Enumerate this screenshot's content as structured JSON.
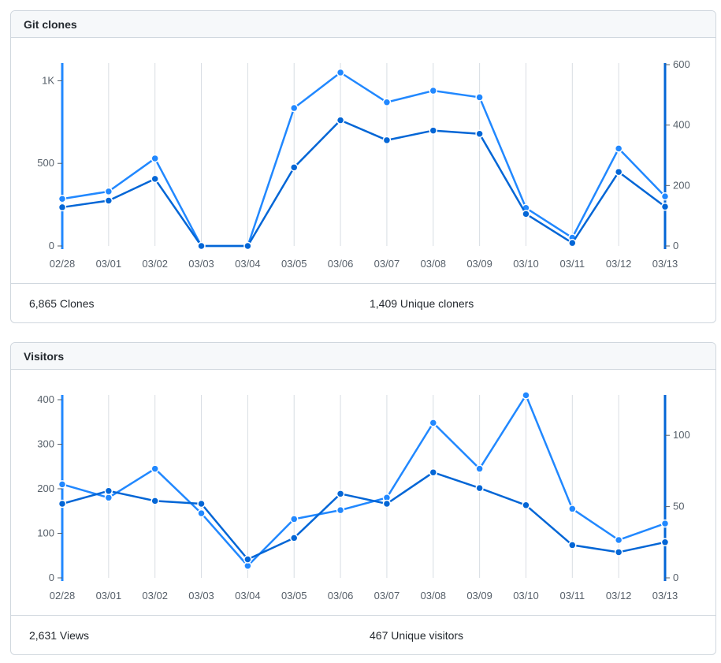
{
  "clones": {
    "title": "Git clones",
    "total_label": "6,865 Clones",
    "unique_label": "1,409 Unique cloners"
  },
  "visitors": {
    "title": "Visitors",
    "total_label": "2,631 Views",
    "unique_label": "467 Unique visitors"
  },
  "colors": {
    "total": "#2188ff",
    "unique": "#0366d6",
    "grid": "#d8dde3",
    "axis": "#0366d6"
  },
  "chart_data": [
    {
      "type": "line",
      "title": "Git clones",
      "categories": [
        "02/28",
        "03/01",
        "03/02",
        "03/03",
        "03/04",
        "03/05",
        "03/06",
        "03/07",
        "03/08",
        "03/09",
        "03/10",
        "03/11",
        "03/12",
        "03/13"
      ],
      "ylim_left": [
        0,
        1050
      ],
      "left_ticks": [
        {
          "v": 0,
          "label": "0"
        },
        {
          "v": 500,
          "label": "500"
        },
        {
          "v": 1000,
          "label": "1K"
        }
      ],
      "ylim_right": [
        0,
        600
      ],
      "right_ticks": [
        {
          "v": 0,
          "label": "0"
        },
        {
          "v": 200,
          "label": "200"
        },
        {
          "v": 400,
          "label": "400"
        },
        {
          "v": 600,
          "label": "600"
        }
      ],
      "grid": true,
      "series": [
        {
          "key": "total",
          "axis": "left",
          "values": [
            285,
            330,
            530,
            0,
            0,
            835,
            1050,
            870,
            940,
            900,
            230,
            50,
            590,
            300
          ]
        },
        {
          "key": "unique",
          "axis": "right",
          "values": [
            128,
            150,
            222,
            0,
            0,
            260,
            416,
            350,
            382,
            371,
            106,
            10,
            245,
            130
          ]
        }
      ]
    },
    {
      "type": "line",
      "title": "Visitors",
      "categories": [
        "02/28",
        "03/01",
        "03/02",
        "03/03",
        "03/04",
        "03/05",
        "03/06",
        "03/07",
        "03/08",
        "03/09",
        "03/10",
        "03/11",
        "03/12",
        "03/13"
      ],
      "ylim_left": [
        0,
        400
      ],
      "left_ticks": [
        {
          "v": 0,
          "label": "0"
        },
        {
          "v": 100,
          "label": "100"
        },
        {
          "v": 200,
          "label": "200"
        },
        {
          "v": 300,
          "label": "300"
        },
        {
          "v": 400,
          "label": "400"
        }
      ],
      "ylim_right": [
        0,
        125
      ],
      "right_ticks": [
        {
          "v": 0,
          "label": "0"
        },
        {
          "v": 50,
          "label": "50"
        },
        {
          "v": 100,
          "label": "100"
        }
      ],
      "grid": true,
      "series": [
        {
          "key": "total",
          "axis": "left",
          "values": [
            210,
            180,
            245,
            145,
            27,
            132,
            152,
            180,
            348,
            245,
            410,
            155,
            85,
            122
          ]
        },
        {
          "key": "unique",
          "axis": "right",
          "values": [
            52,
            61,
            54,
            52,
            13,
            28,
            59,
            52,
            74,
            63,
            51,
            23,
            18,
            25
          ]
        }
      ]
    }
  ]
}
